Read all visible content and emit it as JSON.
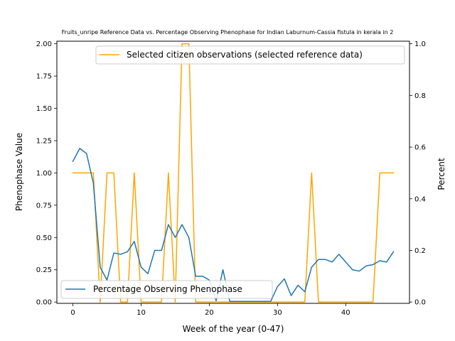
{
  "chart_data": {
    "type": "line",
    "title": "Fruits_unripe Reference Data vs. Percentage Observing Phenophase for Indian Laburnum-Cassia fistula in kerala in 2",
    "xlabel": "Week of the year (0-47)",
    "ylabel_left": "Phenophase Value",
    "ylabel_right": "Percent",
    "xlim": [
      -2.35,
      49.35
    ],
    "ylim_left": [
      -0.01,
      2.02
    ],
    "ylim_right": [
      -0.005,
      1.01
    ],
    "x_ticks": [
      0,
      10,
      20,
      30,
      40
    ],
    "y_ticks_left": [
      0.0,
      0.25,
      0.5,
      0.75,
      1.0,
      1.25,
      1.5,
      1.75,
      2.0
    ],
    "y_ticks_left_labels": [
      "0.00",
      "0.25",
      "0.50",
      "0.75",
      "1.00",
      "1.25",
      "1.50",
      "1.75",
      "2.00"
    ],
    "y_ticks_right": [
      0.0,
      0.2,
      0.4,
      0.6,
      0.8,
      1.0
    ],
    "y_ticks_right_labels": [
      "0.0",
      "0.2",
      "0.4",
      "0.6",
      "0.8",
      "1.0"
    ],
    "grid": false,
    "series": [
      {
        "name": "Percentage Observing Phenophase",
        "axis": "left",
        "color": "#1f77b4",
        "legend_position": "lower-left",
        "x": [
          0,
          1,
          2,
          3,
          4,
          5,
          6,
          7,
          8,
          9,
          10,
          11,
          12,
          13,
          14,
          15,
          16,
          17,
          18,
          19,
          20,
          21,
          22,
          23,
          24,
          25,
          26,
          27,
          28,
          29,
          30,
          31,
          32,
          33,
          34,
          35,
          36,
          37,
          38,
          39,
          40,
          41,
          42,
          43,
          44,
          45,
          46,
          47
        ],
        "y": [
          1.09,
          1.19,
          1.15,
          0.92,
          0.27,
          0.17,
          0.38,
          0.37,
          0.39,
          0.47,
          0.27,
          0.22,
          0.4,
          0.4,
          0.6,
          0.5,
          0.6,
          0.5,
          0.2,
          0.2,
          0.17,
          0.01,
          0.25,
          0.005,
          0.005,
          0.005,
          0.005,
          0.005,
          0.005,
          0.005,
          0.12,
          0.18,
          0.05,
          0.13,
          0.08,
          0.27,
          0.33,
          0.33,
          0.31,
          0.37,
          0.31,
          0.25,
          0.24,
          0.28,
          0.29,
          0.32,
          0.31,
          0.39
        ]
      },
      {
        "name": "Selected citizen observations (selected reference data)",
        "axis": "right",
        "color": "#ffa500",
        "legend_position": "upper-right",
        "x": [
          0,
          1,
          2,
          3,
          4,
          5,
          6,
          7,
          8,
          9,
          10,
          11,
          12,
          13,
          14,
          15,
          16,
          17,
          18,
          19,
          20,
          21,
          22,
          23,
          24,
          25,
          26,
          27,
          28,
          29,
          30,
          31,
          32,
          33,
          34,
          35,
          36,
          37,
          38,
          39,
          40,
          41,
          42,
          43,
          44,
          45,
          46,
          47
        ],
        "y": [
          0.5,
          0.5,
          0.5,
          0.5,
          0,
          0.5,
          0.5,
          0,
          0,
          0.5,
          0,
          0,
          0,
          0,
          0.5,
          0,
          1,
          1,
          0,
          0,
          0,
          0,
          0,
          0,
          0,
          0,
          0,
          0,
          0,
          0,
          0,
          0,
          0,
          0,
          0,
          0.5,
          0,
          0,
          0,
          0,
          0,
          0,
          0,
          0,
          0,
          0.5,
          0.5,
          0.5
        ]
      }
    ]
  }
}
